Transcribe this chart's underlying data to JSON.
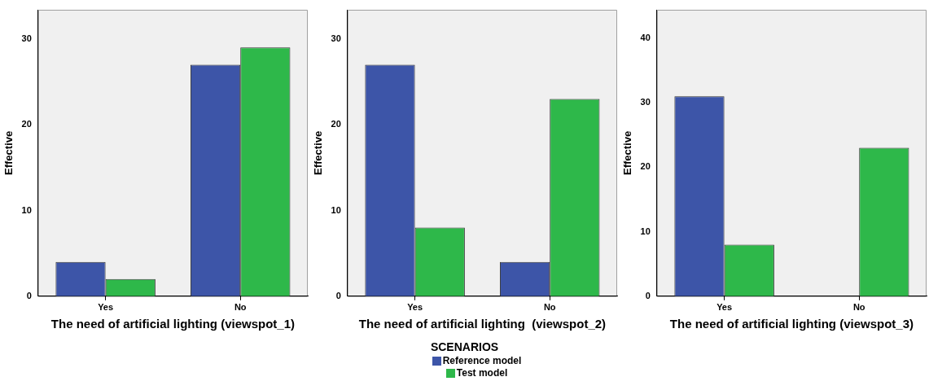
{
  "chart_data": [
    {
      "type": "bar",
      "xlabel": "The need of artificial lighting (viewspot_1)",
      "ylabel": "Effective",
      "categories": [
        "Yes",
        "No"
      ],
      "ylim": [
        0,
        33.4
      ],
      "yticks": [
        0,
        10,
        20,
        30
      ],
      "grid": false,
      "legend": false,
      "series": [
        {
          "color": "#3d55a8",
          "values": [
            4,
            27
          ]
        },
        {
          "color": "#2eb84a",
          "values": [
            2,
            29
          ]
        }
      ]
    },
    {
      "type": "bar",
      "xlabel": "The need of artificial lighting  (viewspot_2)",
      "ylabel": "Effective",
      "categories": [
        "Yes",
        "No"
      ],
      "ylim": [
        0,
        33.4
      ],
      "yticks": [
        0,
        10,
        20,
        30
      ],
      "grid": false,
      "legend": "bottom",
      "legend_title": "SCENARIOS",
      "series": [
        {
          "name": "Reference model",
          "color": "#3d55a8",
          "values": [
            27,
            4
          ]
        },
        {
          "name": "Test model",
          "color": "#2eb84a",
          "values": [
            8,
            23
          ]
        }
      ]
    },
    {
      "type": "bar",
      "xlabel": "The need of artificial lighting (viewspot_3)",
      "ylabel": "Effective",
      "categories": [
        "Yes",
        "No"
      ],
      "ylim": [
        0,
        44.4
      ],
      "yticks": [
        0,
        10,
        20,
        30,
        40
      ],
      "grid": false,
      "legend": false,
      "series": [
        {
          "color": "#3d55a8",
          "values": [
            31,
            null
          ]
        },
        {
          "color": "#2eb84a",
          "values": [
            8,
            23
          ]
        }
      ]
    }
  ]
}
